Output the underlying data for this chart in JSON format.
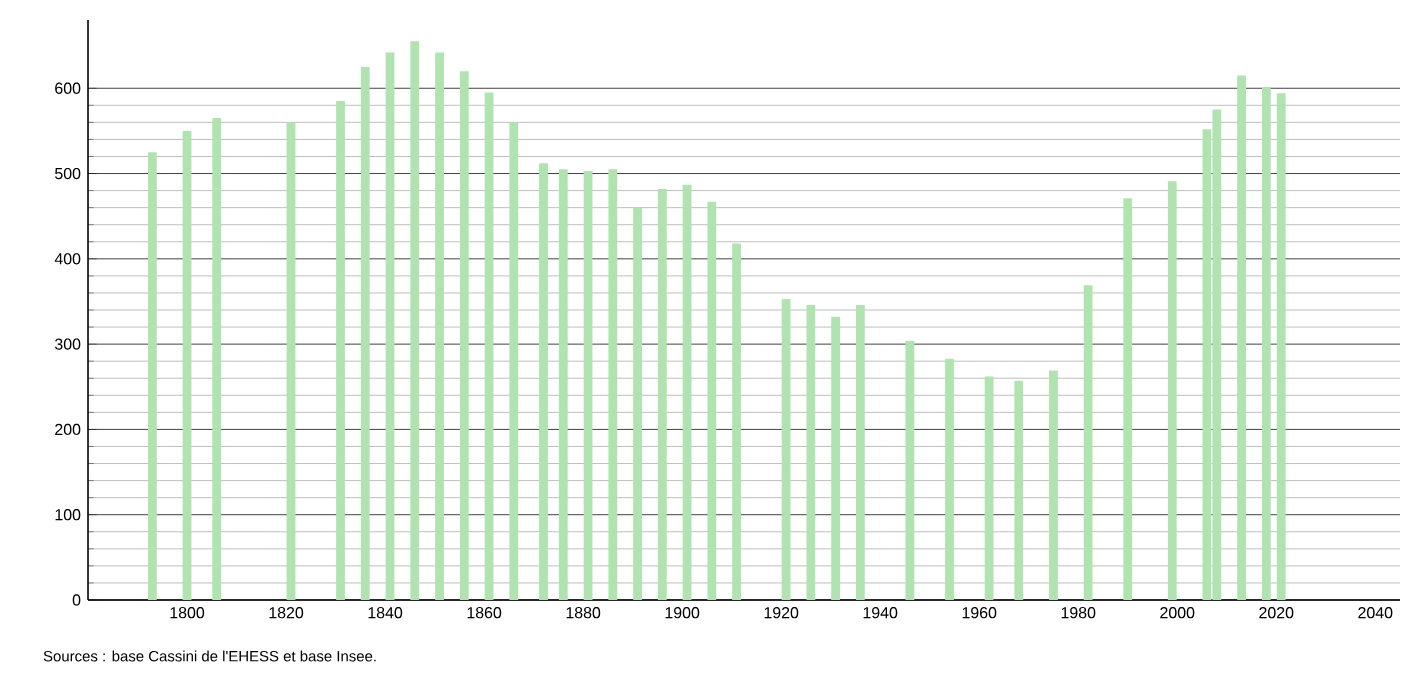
{
  "chart_data": {
    "type": "bar",
    "x": [
      1793,
      1800,
      1806,
      1821,
      1831,
      1836,
      1841,
      1846,
      1851,
      1856,
      1861,
      1866,
      1872,
      1876,
      1881,
      1886,
      1891,
      1896,
      1901,
      1906,
      1911,
      1921,
      1926,
      1931,
      1936,
      1946,
      1954,
      1962,
      1968,
      1975,
      1982,
      1990,
      1999,
      2006,
      2008,
      2013,
      2018,
      2021
    ],
    "values": [
      525,
      550,
      565,
      560,
      585,
      625,
      642,
      655,
      642,
      620,
      595,
      560,
      512,
      505,
      503,
      505,
      460,
      482,
      487,
      467,
      418,
      353,
      346,
      332,
      346,
      304,
      283,
      262,
      257,
      269,
      369,
      471,
      491,
      552,
      575,
      615,
      601,
      594
    ],
    "color": "#b0e3b0",
    "xlim": [
      1780,
      2045
    ],
    "xticks": [
      1800,
      1820,
      1840,
      1860,
      1880,
      1900,
      1920,
      1940,
      1960,
      1980,
      2000,
      2020,
      2040
    ],
    "ylim": [
      0,
      680
    ],
    "yticks": [
      0,
      100,
      200,
      300,
      400,
      500,
      600
    ],
    "grid": "y",
    "annotations": [
      "Sources : base Cassini de l'EHESS et base Insee."
    ]
  }
}
